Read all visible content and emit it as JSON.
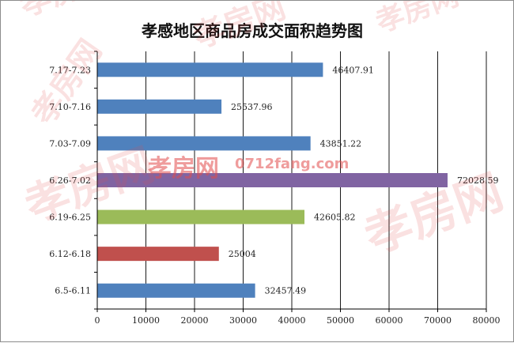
{
  "chart_data": {
    "type": "bar",
    "orientation": "horizontal",
    "title": "孝感地区商品房成交面积趋势图",
    "categories": [
      "7.17-7.23",
      "7.10-7.16",
      "7.03-7.09",
      "6.26-7.02",
      "6.19-6.25",
      "6.12-6.18",
      "6.5-6.11"
    ],
    "values": [
      46407.91,
      25537.96,
      43851.22,
      72028.59,
      42605.82,
      25004,
      32457.49
    ],
    "value_labels": [
      "46407.91",
      "25537.96",
      "43851.22",
      "72028.59",
      "42605.82",
      "25004",
      "32457.49"
    ],
    "bar_colors": [
      "#4f81bd",
      "#4f81bd",
      "#4f81bd",
      "#8064a2",
      "#9bbb59",
      "#c0504d",
      "#4f81bd"
    ],
    "xlim": [
      0,
      80000
    ],
    "x_ticks": [
      "0",
      "10000",
      "20000",
      "30000",
      "40000",
      "50000",
      "60000",
      "70000",
      "80000"
    ],
    "xlabel": "",
    "ylabel": "",
    "grid": "vertical gridlines on",
    "legend": "none"
  },
  "watermark": {
    "brand": "孝房网",
    "site": "0712fang.com"
  }
}
